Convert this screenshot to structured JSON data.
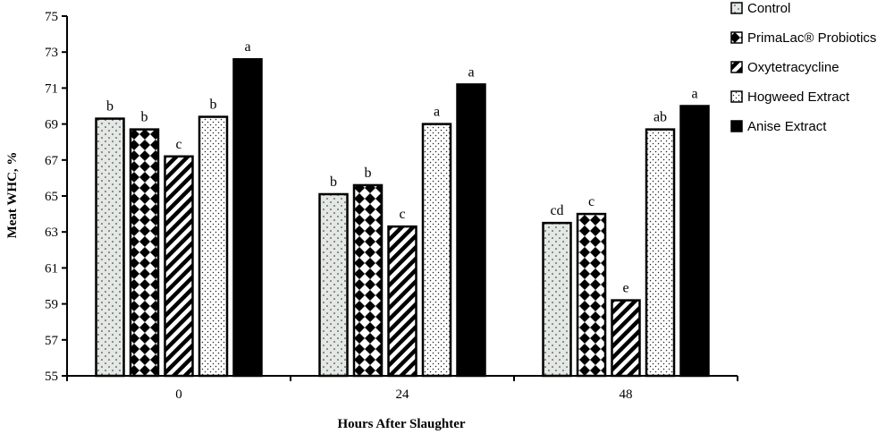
{
  "chart_data": {
    "type": "bar",
    "xlabel": "Hours After Slaughter",
    "ylabel": "Meat WHC, %",
    "ylim": [
      55,
      75
    ],
    "yticks": [
      55,
      57,
      59,
      61,
      63,
      65,
      67,
      69,
      71,
      73,
      75
    ],
    "categories": [
      "0",
      "24",
      "48"
    ],
    "legend_position": "top-right",
    "grid": false,
    "series": [
      {
        "name": "Control",
        "pattern": "dots-light",
        "values": [
          69.3,
          65.1,
          63.5
        ],
        "labels": [
          "b",
          "b",
          "cd"
        ]
      },
      {
        "name": "PrimaLac® Probiotics",
        "pattern": "checker",
        "values": [
          68.7,
          65.6,
          64.0
        ],
        "labels": [
          "b",
          "b",
          "c"
        ]
      },
      {
        "name": "Oxytetracycline",
        "pattern": "diagonal",
        "values": [
          67.2,
          63.3,
          59.2
        ],
        "labels": [
          "c",
          "c",
          "e"
        ]
      },
      {
        "name": "Hogweed Extract",
        "pattern": "dots-white",
        "values": [
          69.4,
          69.0,
          68.7
        ],
        "labels": [
          "b",
          "a",
          "ab"
        ]
      },
      {
        "name": "Anise Extract",
        "pattern": "solid",
        "values": [
          72.6,
          71.2,
          70.0
        ],
        "labels": [
          "a",
          "a",
          "a"
        ]
      }
    ]
  }
}
